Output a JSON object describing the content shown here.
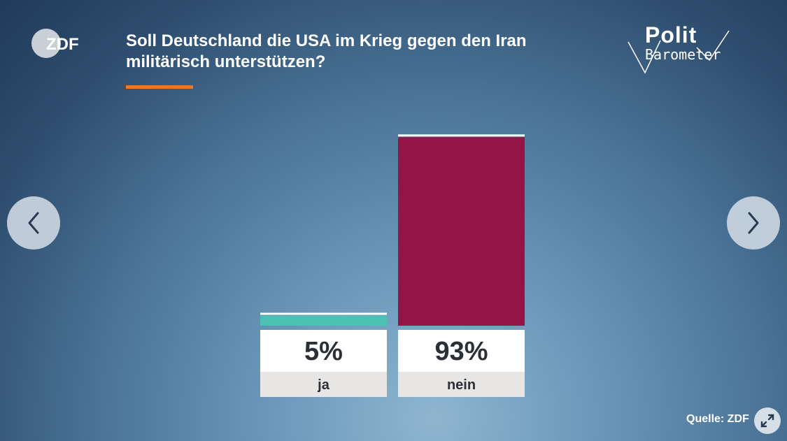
{
  "header": {
    "broadcaster_logo": "ZDF",
    "title_line1": "Soll Deutschland die USA im Krieg gegen den Iran",
    "title_line2": "militärisch unterstützen?",
    "brand_logo_line1": "Polit",
    "brand_logo_line2": "Barometer"
  },
  "footer": {
    "source": "Quelle: ZDF"
  },
  "icons": {
    "prev": "chevron-left-icon",
    "next": "chevron-right-icon",
    "expand": "expand-arrows-icon"
  },
  "colors": {
    "accent": "#e8782a",
    "ja": "#4dc2b4",
    "nein": "#931445",
    "label_bg": "#e8e6e4",
    "value_bg": "#ffffff"
  },
  "chart_data": {
    "type": "bar",
    "categories": [
      "ja",
      "nein"
    ],
    "values": [
      5,
      93
    ],
    "value_labels": [
      "5%",
      "93%"
    ],
    "unit": "%",
    "ylim": [
      0,
      100
    ],
    "grid": false,
    "legend": "none"
  }
}
